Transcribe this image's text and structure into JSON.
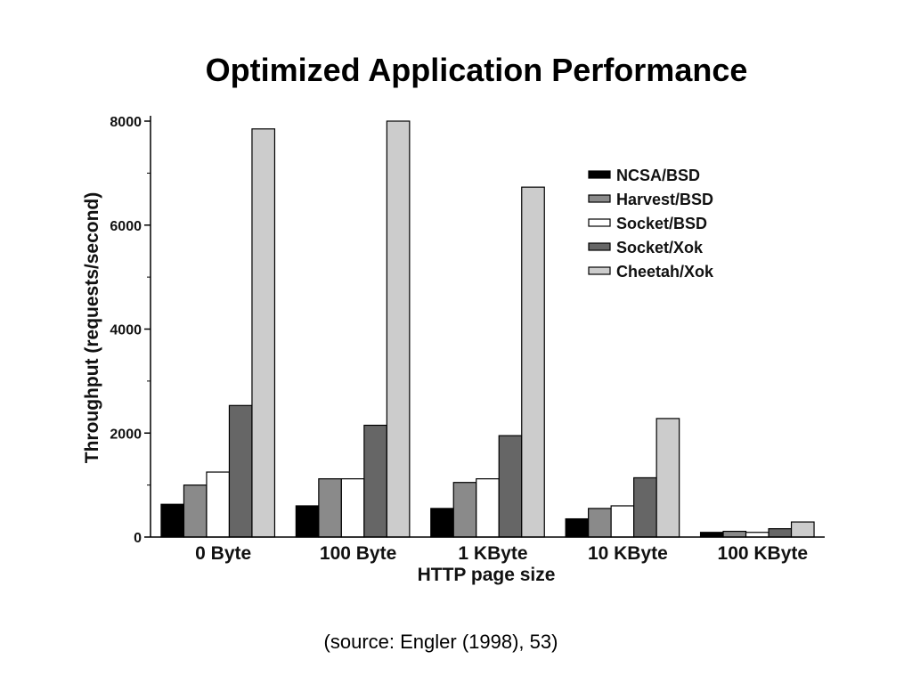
{
  "slide": {
    "title": "Optimized Application Performance",
    "source": "(source: Engler (1998), 53)"
  },
  "chart_data": {
    "type": "bar",
    "categories": [
      "0 Byte",
      "100 Byte",
      "1 KByte",
      "10 KByte",
      "100 KByte"
    ],
    "series": [
      {
        "name": "NCSA/BSD",
        "color": "#000000",
        "values": [
          630,
          600,
          550,
          350,
          90
        ]
      },
      {
        "name": "Harvest/BSD",
        "color": "#8a8a8a",
        "values": [
          1000,
          1120,
          1050,
          550,
          110
        ]
      },
      {
        "name": "Socket/BSD",
        "color": "#ffffff",
        "values": [
          1250,
          1120,
          1120,
          600,
          90
        ]
      },
      {
        "name": "Socket/Xok",
        "color": "#666666",
        "values": [
          2530,
          2150,
          1950,
          1140,
          160
        ]
      },
      {
        "name": "Cheetah/Xok",
        "color": "#cccccc",
        "values": [
          7850,
          8000,
          6730,
          2280,
          290
        ]
      }
    ],
    "xlabel": "HTTP page size",
    "ylabel": "Throughput (requests/second)",
    "ylim": [
      0,
      8000
    ],
    "yticks": [
      "0",
      "2000",
      "4000",
      "6000",
      "8000"
    ],
    "legend_position": "top-right",
    "grid": false
  }
}
